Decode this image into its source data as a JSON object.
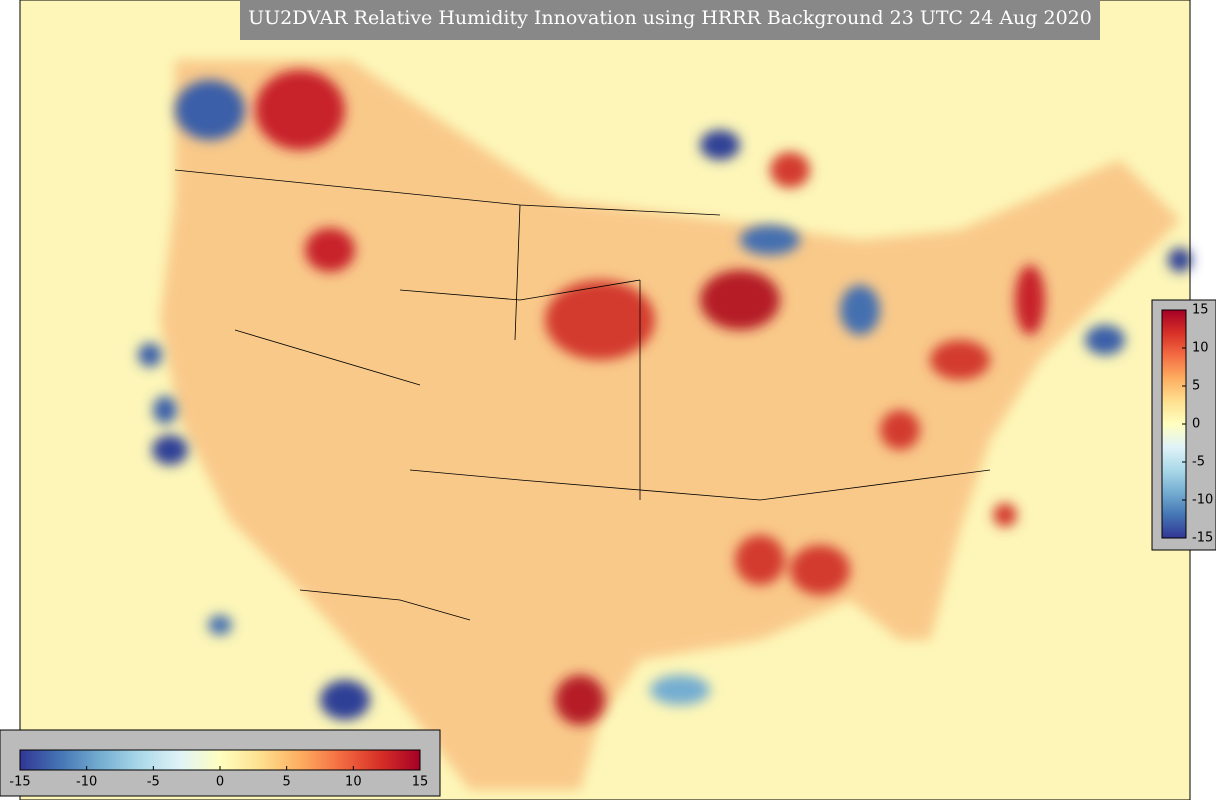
{
  "title": "UU2DVAR Relative Humidity Innovation using HRRR Background 23 UTC 24 Aug 2020",
  "colorbar": {
    "range": [
      -15,
      15
    ],
    "ticks": [
      -15,
      -10,
      -5,
      0,
      5,
      10,
      15
    ]
  }
}
